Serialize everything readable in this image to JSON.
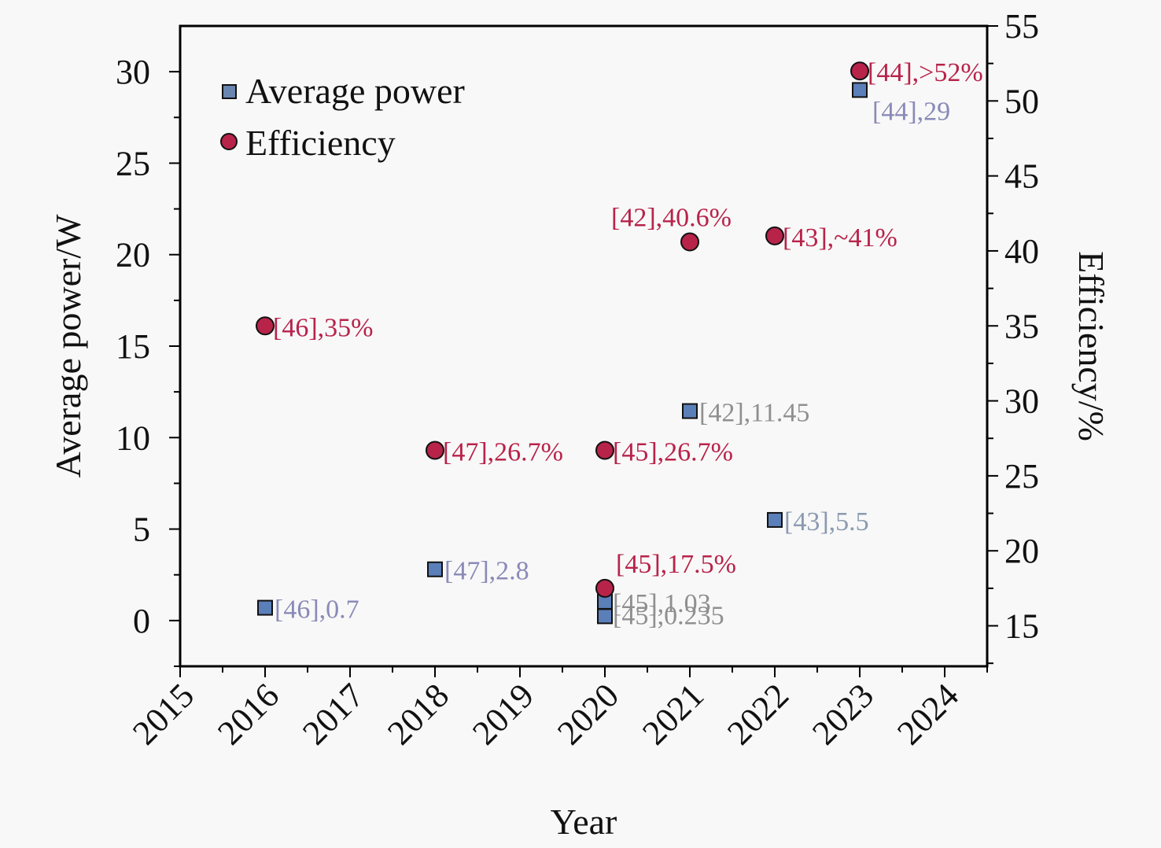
{
  "chart_data": {
    "type": "scatter",
    "title": "",
    "xlabel": "Year",
    "ylabel": "Average power/W",
    "y2label": "Efficiency/%",
    "xlim": [
      2015,
      2024.5
    ],
    "ylim": [
      -2.5,
      32.5
    ],
    "y2lim": [
      12.3,
      55
    ],
    "x_ticks": [
      "2015",
      "2016",
      "2017",
      "2018",
      "2019",
      "2020",
      "2021",
      "2022",
      "2023",
      "2024"
    ],
    "y_ticks": [
      "0",
      "5",
      "10",
      "15",
      "20",
      "25",
      "30"
    ],
    "y2_ticks": [
      "15",
      "20",
      "25",
      "30",
      "35",
      "40",
      "45",
      "50",
      "55"
    ],
    "grid": false,
    "legend": {
      "position": "top-left",
      "entries": [
        {
          "label": "Average power",
          "marker": "square"
        },
        {
          "label": "Efficiency",
          "marker": "circle"
        }
      ]
    },
    "series": [
      {
        "name": "Average power",
        "axis": "left",
        "marker": "square",
        "color": "#5b7fb8",
        "label_color": "#8f8f9f",
        "points": [
          {
            "x": 2016,
            "y": 0.7,
            "label": "[46],0.7"
          },
          {
            "x": 2018,
            "y": 2.8,
            "label": "[47],2.8"
          },
          {
            "x": 2020,
            "y": 1.03,
            "label": "[45],1.03"
          },
          {
            "x": 2020,
            "y": 0.235,
            "label": "[45],0.235"
          },
          {
            "x": 2021,
            "y": 11.45,
            "label": "[42],11.45"
          },
          {
            "x": 2022,
            "y": 5.5,
            "label": "[43],5.5"
          },
          {
            "x": 2023,
            "y": 29,
            "label": "[44],29"
          }
        ]
      },
      {
        "name": "Efficiency",
        "axis": "right",
        "marker": "circle",
        "color": "#b8234a",
        "label_color": "#b8234a",
        "points": [
          {
            "x": 2016,
            "y": 35,
            "label": "[46],35%"
          },
          {
            "x": 2018,
            "y": 26.7,
            "label": "[47],26.7%"
          },
          {
            "x": 2020,
            "y": 26.7,
            "label": "[45],26.7%"
          },
          {
            "x": 2020,
            "y": 17.5,
            "label": "[45],17.5%"
          },
          {
            "x": 2021,
            "y": 40.6,
            "label": "[42],40.6%"
          },
          {
            "x": 2022,
            "y": 41,
            "label": "[43],~41%"
          },
          {
            "x": 2023,
            "y": 52,
            "label": "[44],>52%"
          }
        ]
      }
    ]
  }
}
